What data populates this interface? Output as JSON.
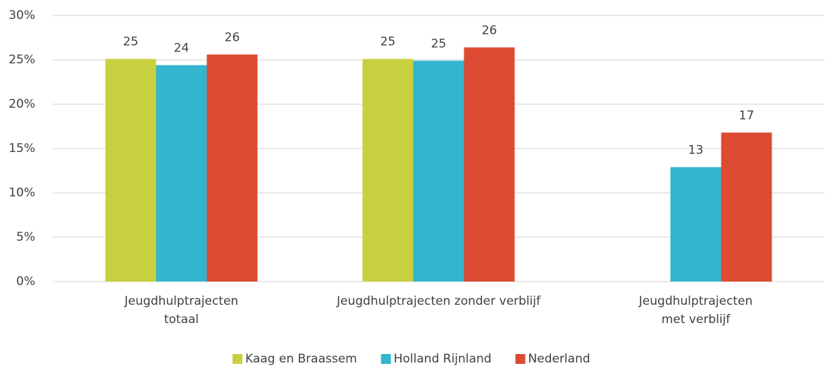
{
  "chart_data": {
    "type": "bar",
    "categories": [
      [
        "Jeugdhulptrajecten",
        "totaal"
      ],
      [
        "Jeugdhulptrajecten zonder verblijf"
      ],
      [
        "Jeugdhulptrajecten",
        "met verblijf"
      ]
    ],
    "series": [
      {
        "name": "Kaag en Braassem",
        "color": "#c9d040",
        "values": [
          25.1,
          25.1,
          null
        ],
        "value_labels": [
          "25",
          "25",
          null
        ]
      },
      {
        "name": "Holland Rijnland",
        "color": "#33b5cf",
        "values": [
          24.4,
          24.9,
          12.9
        ],
        "value_labels": [
          "24",
          "25",
          "13"
        ]
      },
      {
        "name": "Nederland",
        "color": "#dd4b33",
        "values": [
          25.6,
          26.4,
          16.8
        ],
        "value_labels": [
          "26",
          "26",
          "17"
        ]
      }
    ],
    "ylim": [
      0,
      30
    ],
    "yticks": [
      {
        "value": 0,
        "label": "0%"
      },
      {
        "value": 5,
        "label": "5%"
      },
      {
        "value": 10,
        "label": "10%"
      },
      {
        "value": 15,
        "label": "15%"
      },
      {
        "value": 20,
        "label": "20%"
      },
      {
        "value": 25,
        "label": "25%"
      },
      {
        "value": 30,
        "label": "30%"
      }
    ],
    "grid": true,
    "legend": "bottom"
  }
}
